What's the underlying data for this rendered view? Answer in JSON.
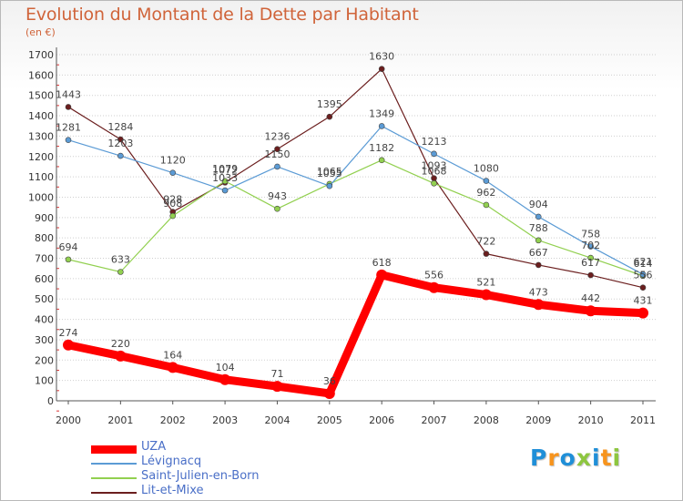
{
  "chart_data": {
    "type": "line",
    "title": "Evolution du Montant de la Dette par Habitant",
    "subtitle": "(en €)",
    "x": [
      "2000",
      "2001",
      "2002",
      "2003",
      "2004",
      "2005",
      "2006",
      "2007",
      "2008",
      "2009",
      "2010",
      "2011"
    ],
    "yticks": [
      0,
      100,
      200,
      300,
      400,
      500,
      600,
      700,
      800,
      900,
      1000,
      1100,
      1200,
      1300,
      1400,
      1500,
      1600,
      1700
    ],
    "ylim": [
      0,
      1700
    ],
    "grid": "horizontal-dotted",
    "legend_position": "bottom-left",
    "series": [
      {
        "name": "UZA",
        "color": "#ff0000",
        "values": [
          274,
          220,
          164,
          104,
          71,
          36,
          618,
          556,
          521,
          473,
          442,
          431
        ]
      },
      {
        "name": "Lévignacq",
        "color": "#5b9bd5",
        "values": [
          1281,
          1203,
          1120,
          1033,
          1150,
          1055,
          1349,
          1213,
          1080,
          904,
          758,
          621
        ]
      },
      {
        "name": "Saint-Julien-en-Born",
        "color": "#92d050",
        "values": [
          694,
          633,
          908,
          1079,
          943,
          1065,
          1182,
          1068,
          962,
          788,
          702,
          614
        ]
      },
      {
        "name": "Lit-et-Mixe",
        "color": "#6b1e1e",
        "values": [
          1443,
          1284,
          928,
          1072,
          1236,
          1395,
          1630,
          1093,
          722,
          667,
          617,
          556
        ]
      }
    ]
  },
  "logo": {
    "letters": [
      "P",
      "r",
      "o",
      "x",
      "i",
      "t",
      "i"
    ],
    "colors": [
      "#1f8fd8",
      "#f7941d",
      "#1f8fd8",
      "#8dc63f",
      "#1f8fd8",
      "#f7941d",
      "#8dc63f"
    ]
  }
}
